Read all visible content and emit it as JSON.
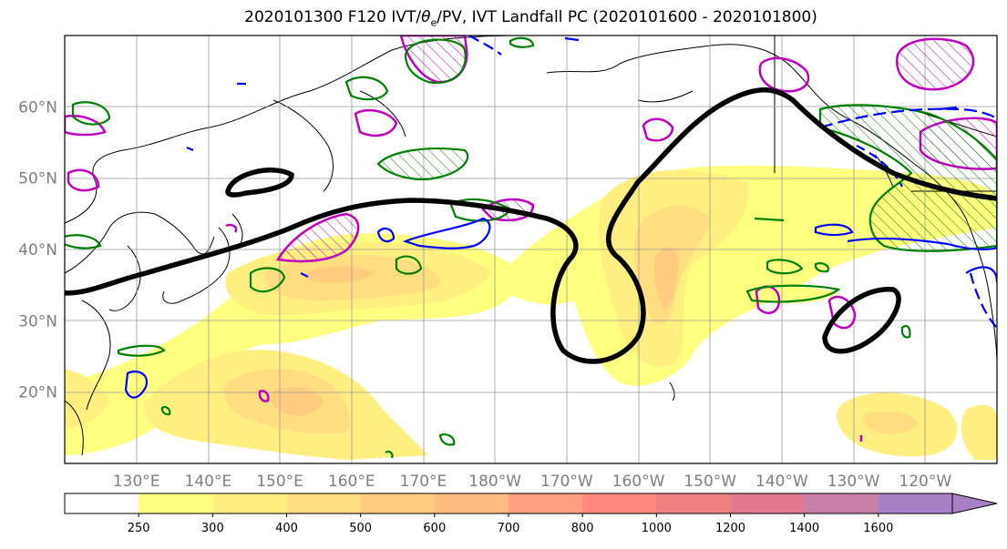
{
  "title": {
    "prefix": "2020101300 F120 IVT/",
    "theta": "θ",
    "theta_sub": "e",
    "suffix": "/PV, IVT Landfall PC (2020101600 - 2020101800)"
  },
  "map": {
    "projection": "cylindrical",
    "lon_range_east": [
      120,
      250
    ],
    "lat_range": [
      10,
      70
    ],
    "lat_ticks": [
      {
        "value": 60,
        "label": "60°N"
      },
      {
        "value": 50,
        "label": "50°N"
      },
      {
        "value": 40,
        "label": "40°N"
      },
      {
        "value": 30,
        "label": "30°N"
      },
      {
        "value": 20,
        "label": "20°N"
      }
    ],
    "lon_ticks": [
      {
        "value": 130,
        "label": "130°E"
      },
      {
        "value": 140,
        "label": "140°E"
      },
      {
        "value": 150,
        "label": "150°E"
      },
      {
        "value": 160,
        "label": "160°E"
      },
      {
        "value": 170,
        "label": "170°E"
      },
      {
        "value": 180,
        "label": "180°W"
      },
      {
        "value": 190,
        "label": "170°W"
      },
      {
        "value": 200,
        "label": "160°W"
      },
      {
        "value": 210,
        "label": "150°W"
      },
      {
        "value": 220,
        "label": "140°W"
      },
      {
        "value": 230,
        "label": "130°W"
      },
      {
        "value": 240,
        "label": "120°W"
      }
    ],
    "grid": true,
    "colors": {
      "ivt_fill": "#ffff66",
      "black_contour": "#000000",
      "green_contour": "#008000",
      "blue_contour": "#0000ff",
      "magenta_contour": "#c000c0",
      "grid": "#999999",
      "coast": "#000000"
    }
  },
  "colorbar": {
    "levels": [
      {
        "label": "",
        "color": "#ffffff"
      },
      {
        "label": "250",
        "color": "#ffff80"
      },
      {
        "label": "300",
        "color": "#ffee80"
      },
      {
        "label": "400",
        "color": "#ffdd80"
      },
      {
        "label": "500",
        "color": "#ffcc80"
      },
      {
        "label": "600",
        "color": "#ffbb80"
      },
      {
        "label": "700",
        "color": "#ffa080"
      },
      {
        "label": "800",
        "color": "#ff8880"
      },
      {
        "label": "1000",
        "color": "#f08080"
      },
      {
        "label": "1200",
        "color": "#e07890"
      },
      {
        "label": "1400",
        "color": "#c880a8"
      },
      {
        "label": "1600",
        "color": "#a880c8"
      }
    ],
    "extend": "max"
  }
}
